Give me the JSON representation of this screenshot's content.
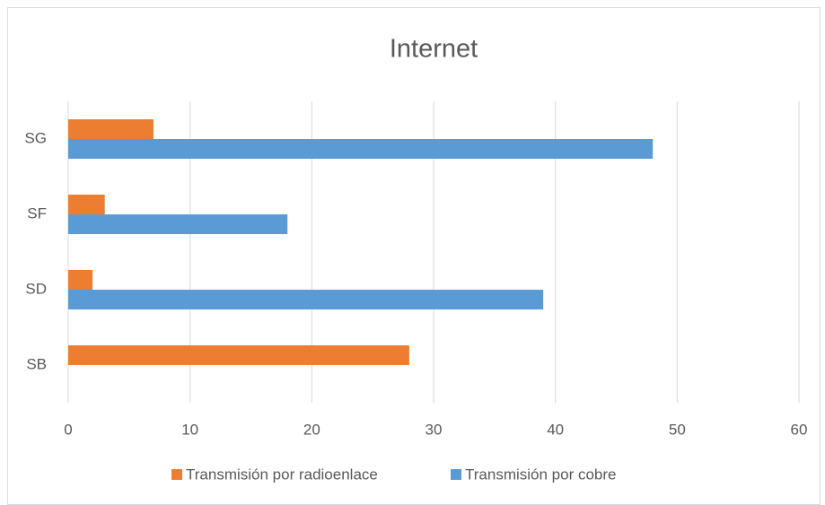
{
  "chart_data": {
    "type": "barh",
    "title": "Internet",
    "categories": [
      "SB",
      "SD",
      "SF",
      "SG"
    ],
    "series": [
      {
        "name": "Transmisión por radioenlace",
        "color": "#ed7d31",
        "values": [
          28,
          2,
          3,
          7
        ]
      },
      {
        "name": "Transmisión por cobre",
        "color": "#5b9bd5",
        "values": [
          0,
          39,
          18,
          48
        ]
      }
    ],
    "xlim": [
      0,
      60
    ],
    "xticks": [
      0,
      10,
      20,
      30,
      40,
      50,
      60
    ],
    "grid": true,
    "legend": "bottom"
  }
}
